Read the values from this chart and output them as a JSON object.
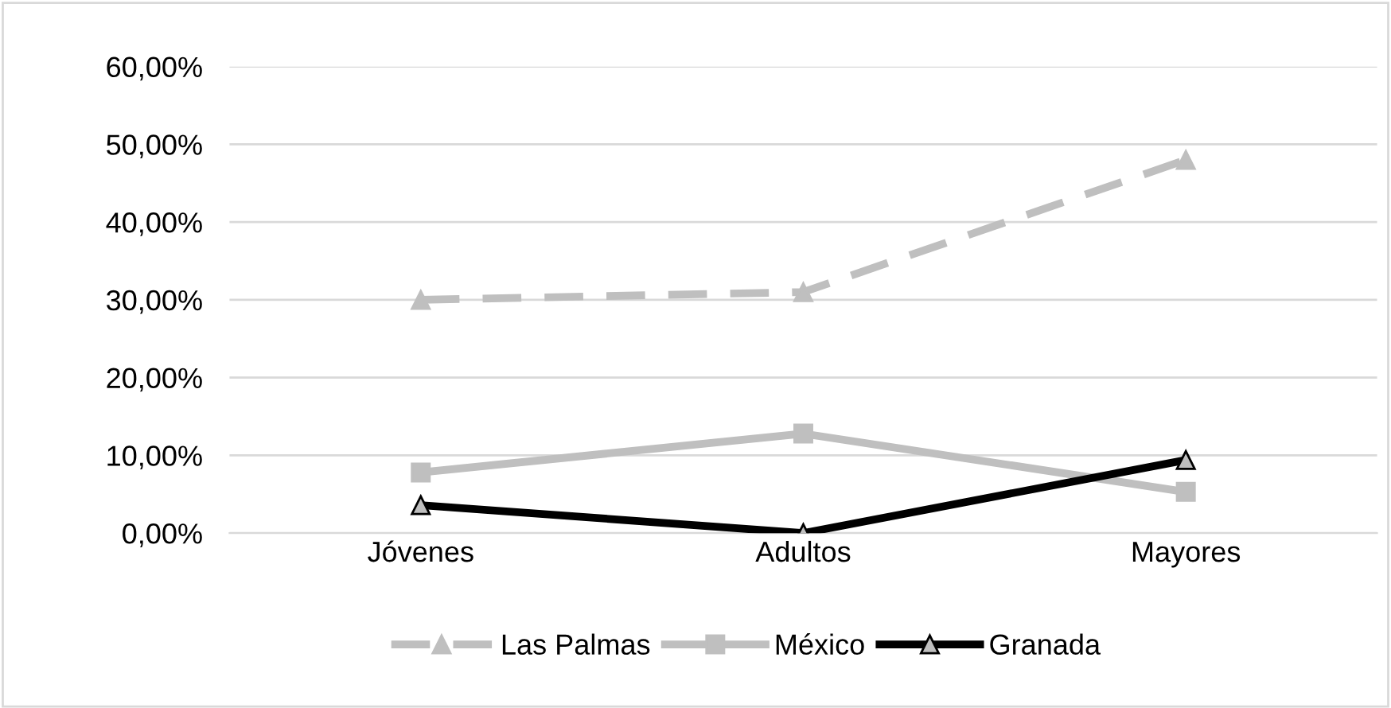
{
  "chart_data": {
    "type": "line",
    "categories": [
      "Jóvenes",
      "Adultos",
      "Mayores"
    ],
    "series": [
      {
        "name": "Las Palmas",
        "color": "#bfbfbf",
        "values": [
          30,
          31,
          48
        ],
        "marker": "triangle",
        "line_style": "dashed"
      },
      {
        "name": "México",
        "color": "#bfbfbf",
        "values": [
          7.8,
          12.8,
          5.3
        ],
        "marker": "square",
        "line_style": "solid"
      },
      {
        "name": "Granada",
        "color": "#000000",
        "values": [
          3.6,
          0,
          9.4
        ],
        "marker": "triangle",
        "line_style": "solid"
      }
    ],
    "ylim": [
      0,
      60
    ],
    "yticks": [
      {
        "value": 0,
        "label": "0,00%"
      },
      {
        "value": 10,
        "label": "10,00%"
      },
      {
        "value": 20,
        "label": "20,00%"
      },
      {
        "value": 30,
        "label": "30,00%"
      },
      {
        "value": 40,
        "label": "40,00%"
      },
      {
        "value": 50,
        "label": "50,00%"
      },
      {
        "value": 60,
        "label": "60,00%"
      }
    ],
    "grid": "y",
    "legend": "bottom"
  }
}
